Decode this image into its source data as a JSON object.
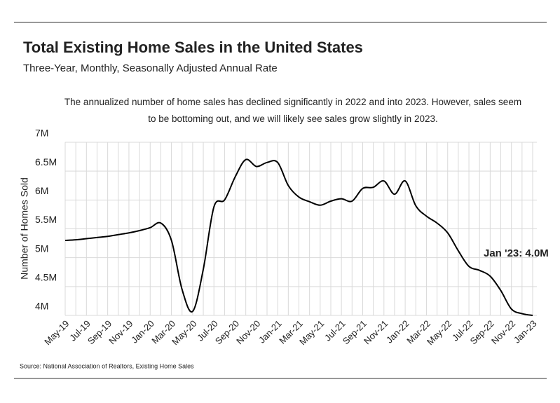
{
  "chart_data": {
    "type": "line",
    "title": "Total Existing Home Sales in the United States",
    "subtitle": "Three-Year, Monthly, Seasonally Adjusted Annual Rate",
    "annotation": "The annualized number of home sales has declined significantly in 2022 and into 2023. However, sales seem to be bottoming out, and we will likely see sales grow slightly in 2023.",
    "end_label": "Jan '23: 4.0M",
    "y_label": "Number of Homes Sold",
    "source": "Source:  National Association of Realtors, Existing Home Sales",
    "categories": [
      "May-19",
      null,
      "Jul-19",
      null,
      "Sep-19",
      null,
      "Nov-19",
      null,
      "Jan-20",
      null,
      "Mar-20",
      null,
      "May-20",
      null,
      "Jul-20",
      null,
      "Sep-20",
      null,
      "Nov-20",
      null,
      "Jan-21",
      null,
      "Mar-21",
      null,
      "May-21",
      null,
      "Jul-21",
      null,
      "Sep-21",
      null,
      "Nov-21",
      null,
      "Jan-22",
      null,
      "Mar-22",
      null,
      "May-22",
      null,
      "Jul-22",
      null,
      "Sep-22",
      null,
      "Nov-22",
      null,
      "Jan-23"
    ],
    "series": [
      {
        "name": "Total Existing Home Sales",
        "color": "#000000",
        "values": [
          5.3,
          5.31,
          5.33,
          5.35,
          5.37,
          5.4,
          5.43,
          5.47,
          5.52,
          5.6,
          5.3,
          4.45,
          4.07,
          4.8,
          5.88,
          6.0,
          6.4,
          6.7,
          6.58,
          6.65,
          6.65,
          6.25,
          6.05,
          5.97,
          5.91,
          5.98,
          6.02,
          5.98,
          6.2,
          6.22,
          6.33,
          6.1,
          6.33,
          5.9,
          5.72,
          5.6,
          5.43,
          5.12,
          4.85,
          4.78,
          4.68,
          4.43,
          4.11,
          4.03,
          4.0
        ]
      }
    ],
    "ylim": [
      4,
      7
    ],
    "yticks": [
      {
        "value": 4,
        "label": "4M"
      },
      {
        "value": 4.5,
        "label": "4.5M"
      },
      {
        "value": 5,
        "label": "5M"
      },
      {
        "value": 5.5,
        "label": "5.5M"
      },
      {
        "value": 6,
        "label": "6M"
      },
      {
        "value": 6.5,
        "label": "6.5M"
      },
      {
        "value": 7,
        "label": "7M"
      }
    ],
    "grid": true
  }
}
